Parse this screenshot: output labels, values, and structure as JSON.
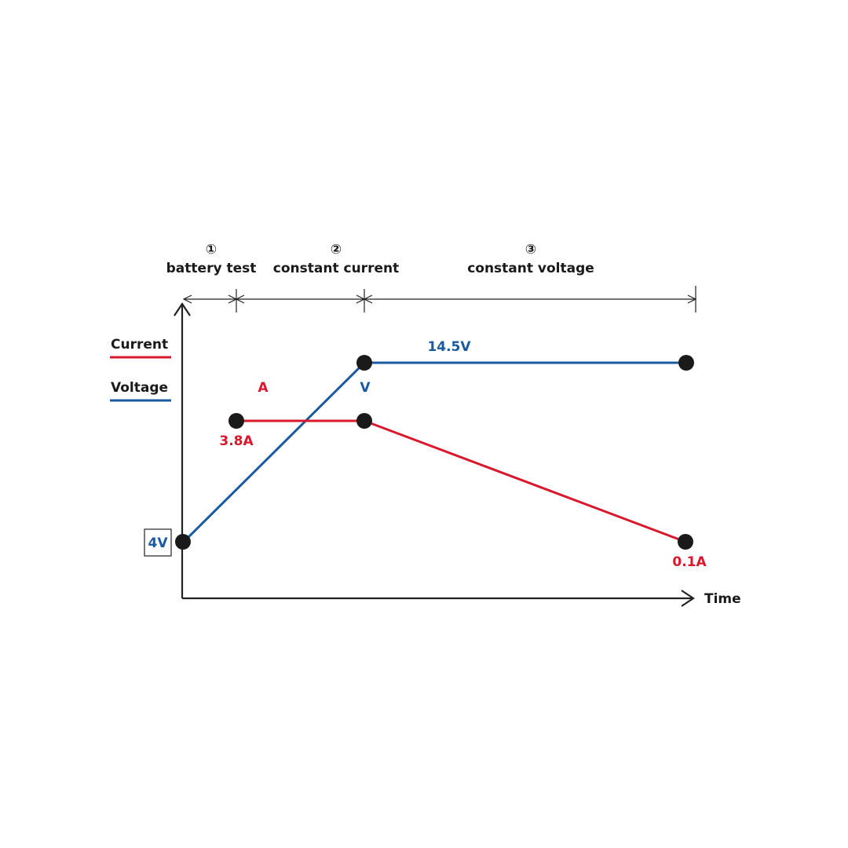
{
  "stages": [
    {
      "number": "①",
      "label": "battery test"
    },
    {
      "number": "②",
      "label": "constant current"
    },
    {
      "number": "③",
      "label": "constant voltage"
    }
  ],
  "legend": {
    "current": "Current",
    "voltage": "Voltage"
  },
  "labels": {
    "current_marker": "A",
    "voltage_marker": "V",
    "voltage_max": "14.5V",
    "current_start": "3.8A",
    "voltage_start": "4V",
    "current_end": "0.1A"
  },
  "x_axis": "Time"
}
